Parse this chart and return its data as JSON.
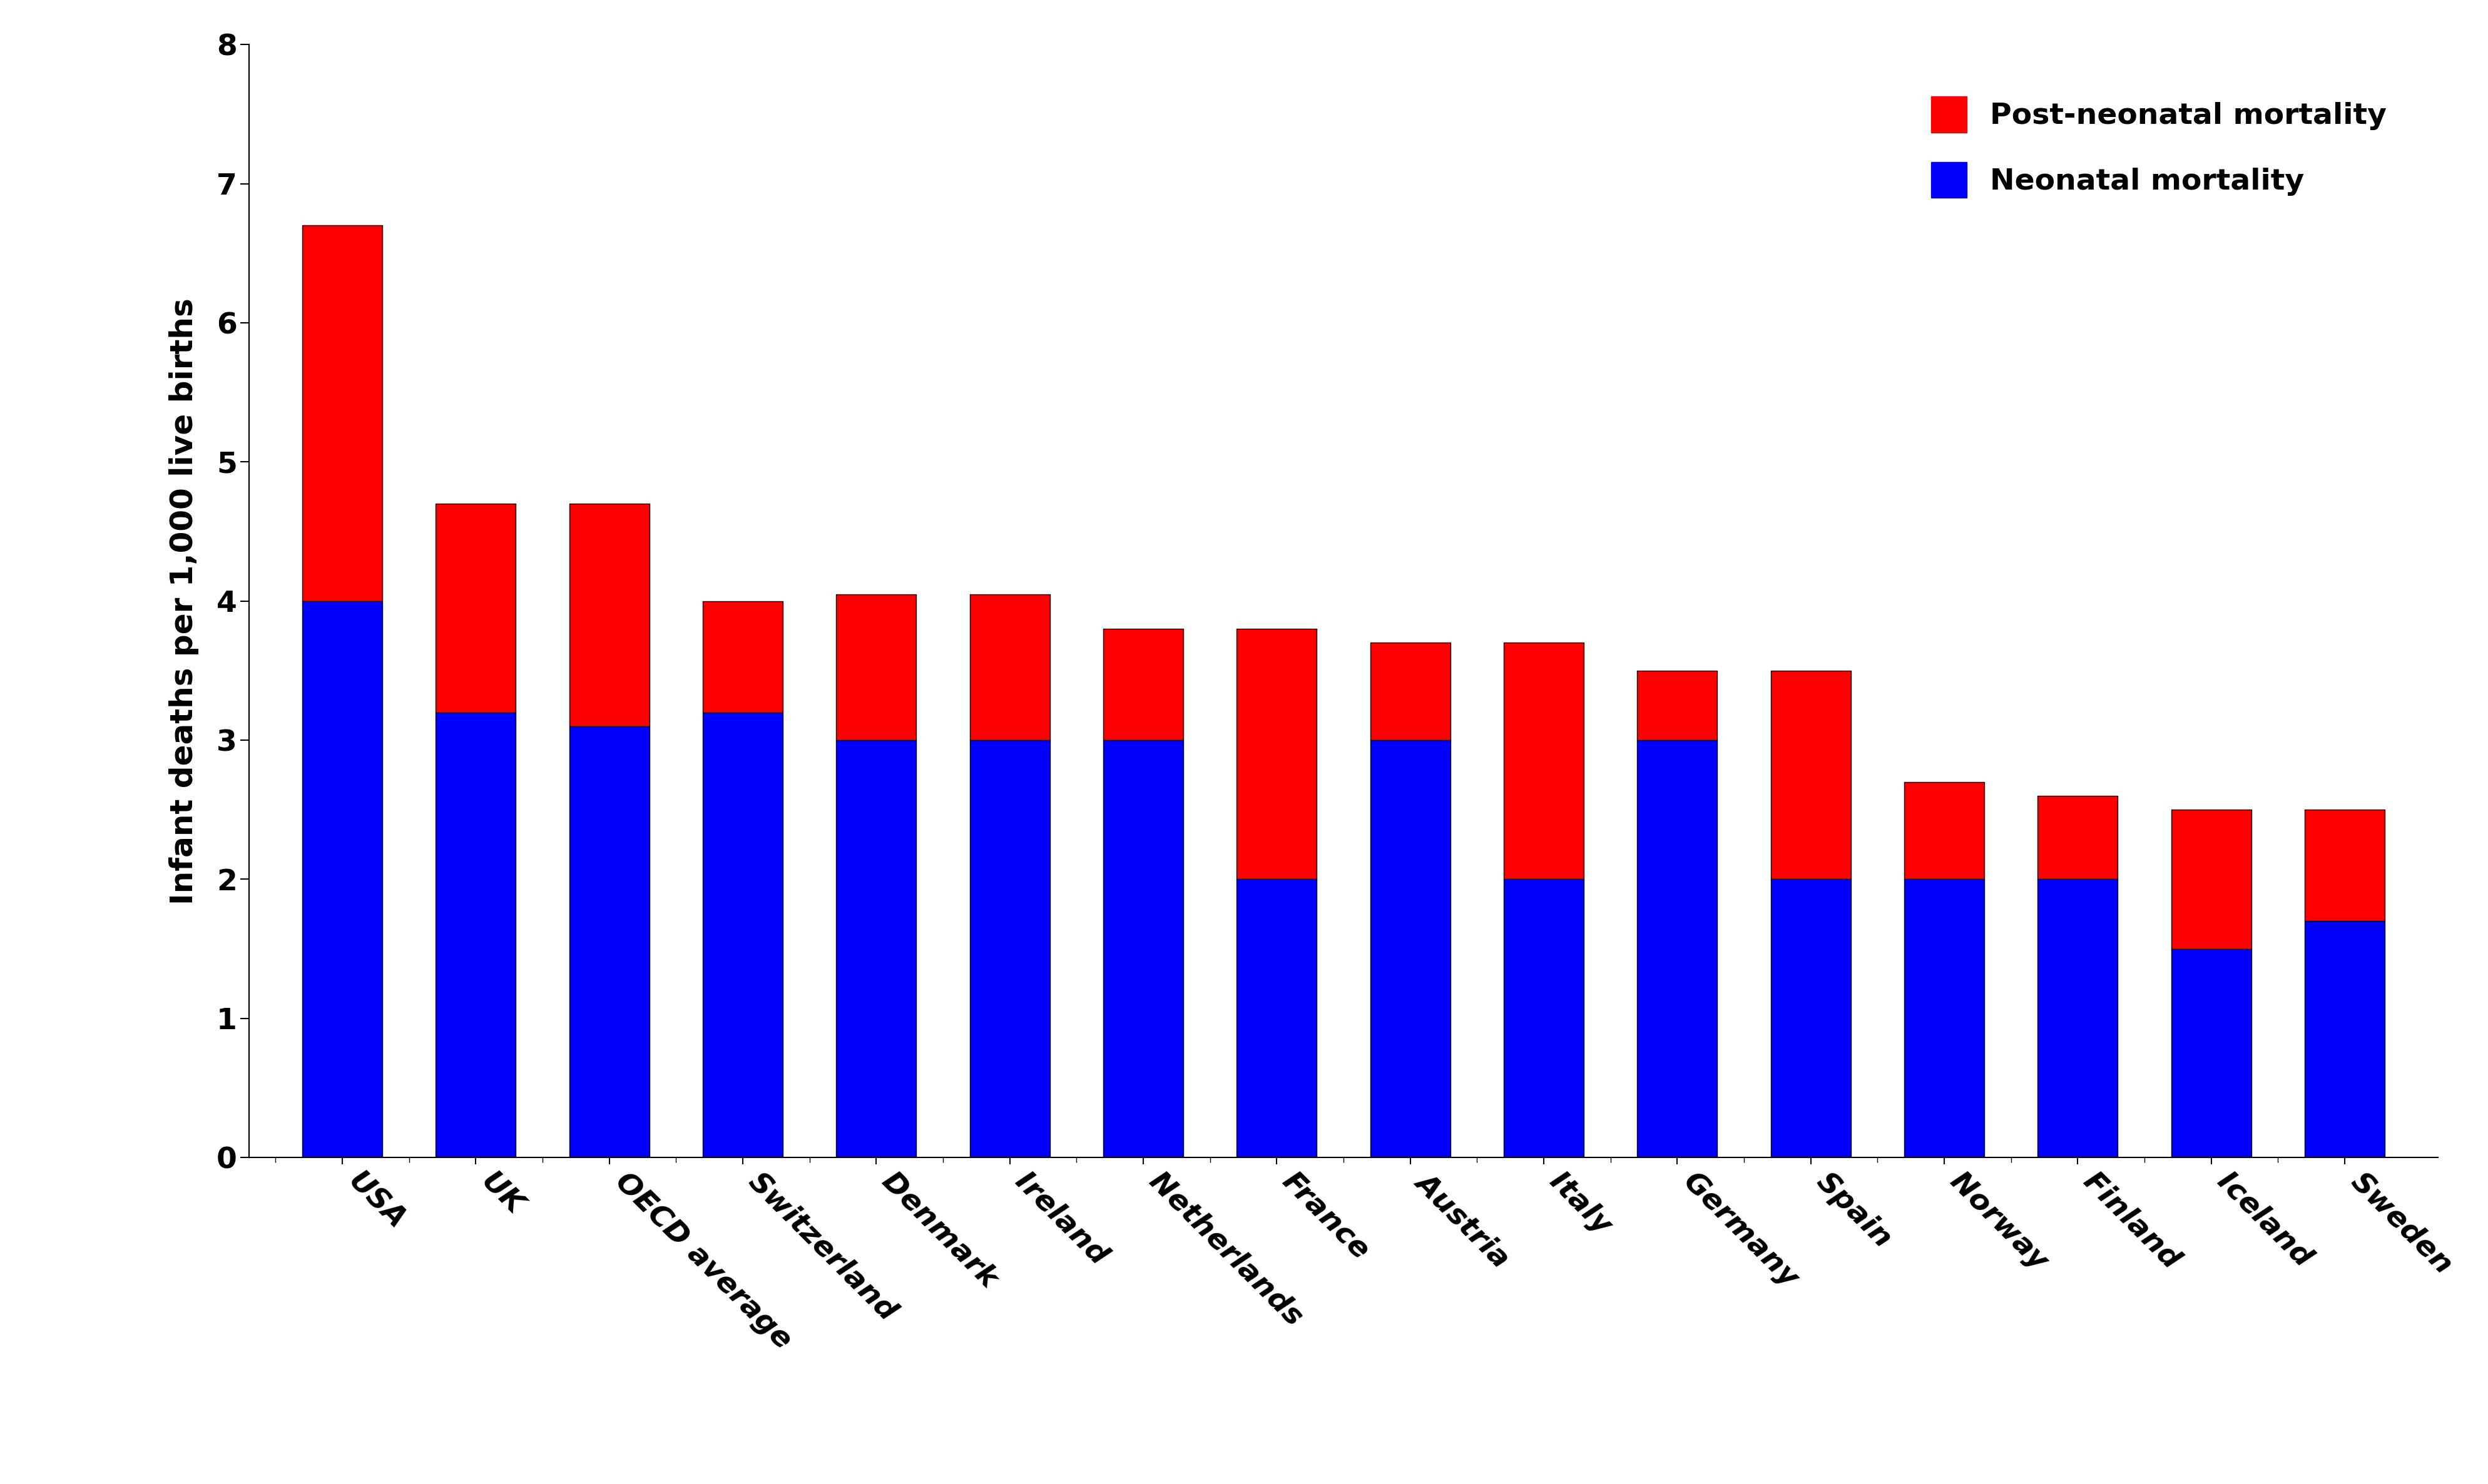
{
  "categories": [
    "USA",
    "UK",
    "OECD average",
    "Switzerland",
    "Denmark",
    "Ireland",
    "Netherlands",
    "France",
    "Austria",
    "Italy",
    "Germany",
    "Spain",
    "Norway",
    "Finland",
    "Iceland",
    "Sweden"
  ],
  "neonatal": [
    4.0,
    3.2,
    3.1,
    3.2,
    3.0,
    3.0,
    3.0,
    2.0,
    3.0,
    2.0,
    3.0,
    2.0,
    2.0,
    2.0,
    1.5,
    1.7
  ],
  "post_neonatal": [
    2.7,
    1.5,
    1.6,
    0.8,
    1.05,
    1.05,
    0.8,
    1.8,
    0.7,
    1.7,
    0.5,
    1.5,
    0.7,
    0.6,
    1.0,
    0.8
  ],
  "neonatal_color": "#0000FF",
  "post_neonatal_color": "#FF0000",
  "ylabel": "Infant deaths per 1,000 live births",
  "ylim": [
    0,
    8
  ],
  "yticks": [
    0,
    1,
    2,
    3,
    4,
    5,
    6,
    7,
    8
  ],
  "legend_post": "Post-neonatal mortality",
  "legend_neo": "Neonatal mortality",
  "bar_width": 0.6,
  "background_color": "#FFFFFF",
  "tick_fontsize": 34,
  "label_fontsize": 36,
  "legend_fontsize": 34
}
